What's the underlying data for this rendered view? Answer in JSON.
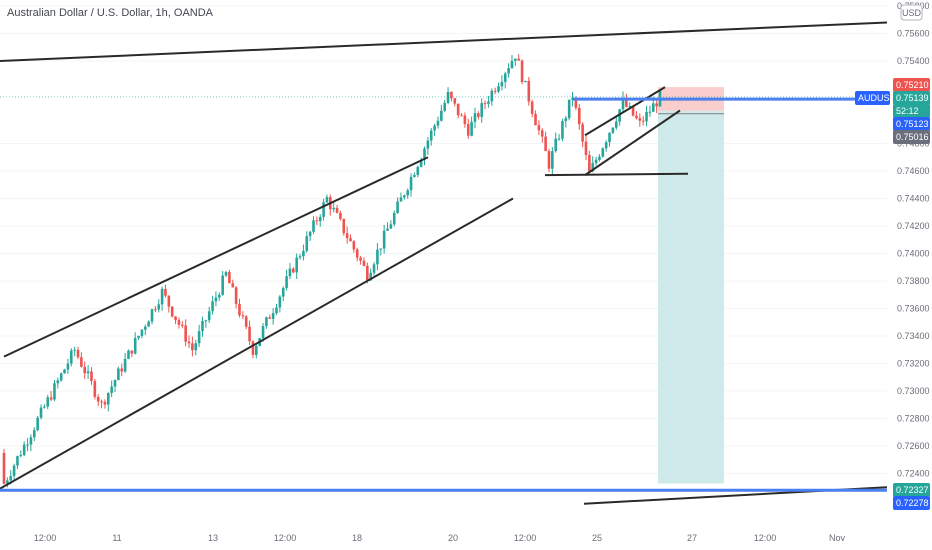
{
  "header": {
    "title": "Australian Dollar / U.S. Dollar, 1h, OANDA",
    "currency_label": "USD",
    "symbol": "AUDUSD",
    "countdown": "52:12"
  },
  "colors": {
    "bull": "#26a69a",
    "bear": "#ef5350",
    "trendline": "#2a2a2a",
    "horizontal_level": "#4c7ff0",
    "stop_zone": "#f9c9c8",
    "target_zone": "#cfeaea",
    "last_price": "#26a69a",
    "tag_red": "#ef5350",
    "tag_blue": "#2962ff",
    "tag_gray": "#6b6f7b"
  },
  "chart_data": {
    "type": "candlestick",
    "title": "Australian Dollar / U.S. Dollar, 1h, OANDA",
    "ylim": [
      0.722,
      0.7582
    ],
    "y_ticks": [
      "0.75800",
      "0.75600",
      "0.75400",
      "0.74800",
      "0.74600",
      "0.74400",
      "0.74200",
      "0.74000",
      "0.73800",
      "0.73600",
      "0.73400",
      "0.73200",
      "0.73000",
      "0.72800",
      "0.72600",
      "0.72400"
    ],
    "x_ticks": [
      "12:00",
      "11",
      "13",
      "12:00",
      "18",
      "20",
      "12:00",
      "25",
      "27",
      "12:00",
      "Nov"
    ],
    "price_tags": [
      {
        "label": "0.75210",
        "value": 0.7521,
        "kind": "stop"
      },
      {
        "label": "AUDUSD",
        "value": 0.75139,
        "kind": "symbol"
      },
      {
        "label": "0.75139",
        "value": 0.75139,
        "kind": "last"
      },
      {
        "label": "52:12",
        "value": 0.75139,
        "kind": "countdown"
      },
      {
        "label": "0.75123",
        "value": 0.75123,
        "kind": "level"
      },
      {
        "label": "0.75016",
        "value": 0.75016,
        "kind": "gray"
      },
      {
        "label": "0.72327",
        "value": 0.72327,
        "kind": "target"
      },
      {
        "label": "0.72278",
        "value": 0.72278,
        "kind": "level"
      }
    ],
    "horizontal_levels": [
      0.75123,
      0.72278
    ],
    "short_position": {
      "entry": 0.75139,
      "stop": 0.7521,
      "target": 0.72327
    },
    "trend": {
      "segments": [
        [
          0.7228,
          0.733
        ],
        [
          0.733,
          0.729
        ],
        [
          0.729,
          0.7372
        ],
        [
          0.7372,
          0.733
        ],
        [
          0.733,
          0.7385
        ],
        [
          0.7385,
          0.733
        ],
        [
          0.733,
          0.744
        ],
        [
          0.744,
          0.7385
        ],
        [
          0.7385,
          0.7515
        ],
        [
          0.7515,
          0.749
        ],
        [
          0.749,
          0.7545
        ],
        [
          0.7545,
          0.7465
        ],
        [
          0.7465,
          0.7515
        ],
        [
          0.7515,
          0.7458
        ],
        [
          0.7458,
          0.751
        ],
        [
          0.751,
          0.7494
        ],
        [
          0.7494,
          0.7514
        ]
      ],
      "counts": [
        22,
        8,
        18,
        9,
        10,
        8,
        22,
        12,
        24,
        6,
        14,
        10,
        7,
        5,
        10,
        5,
        6
      ]
    }
  }
}
